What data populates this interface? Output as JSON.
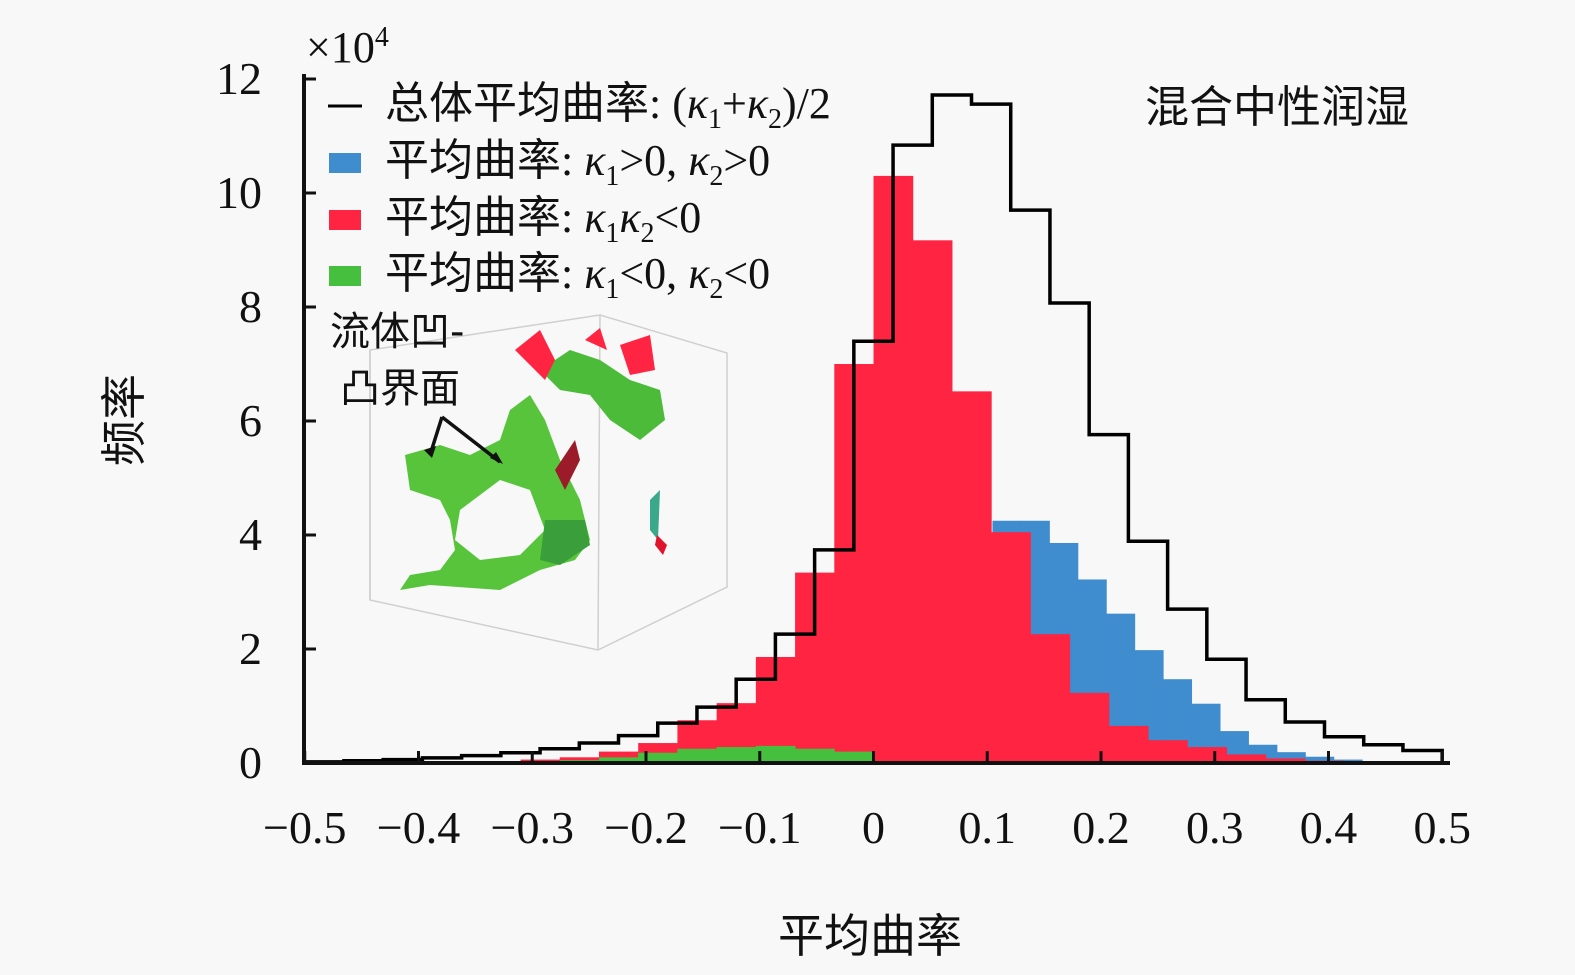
{
  "chart_data": {
    "type": "bar",
    "title": "混合中性润湿",
    "xlabel": "平均曲率",
    "ylabel": "频率",
    "y_multiplier": "×10",
    "y_multiplier_exp": "4",
    "xlim": [
      -0.5,
      0.5
    ],
    "ylim": [
      0,
      12
    ],
    "xticks": [
      -0.5,
      -0.4,
      -0.3,
      -0.2,
      -0.1,
      0,
      0.1,
      0.2,
      0.3,
      0.4,
      0.5
    ],
    "xtick_labels": [
      "−0.5",
      "−0.4",
      "−0.3",
      "−0.2",
      "−0.1",
      "0",
      "0.1",
      "0.2",
      "0.3",
      "0.4",
      "0.5"
    ],
    "yticks": [
      0,
      2,
      4,
      6,
      8,
      10,
      12
    ],
    "ytick_labels": [
      "0",
      "2",
      "4",
      "6",
      "8",
      "10",
      "12"
    ],
    "grid": false,
    "legend_position": "top-left",
    "series": [
      {
        "name": "平均曲率: κ1>0, κ2>0",
        "kind": "filled",
        "color": "#3f8ccf",
        "bin_start": 0.1046,
        "bin_width": 0.025,
        "values": [
          4.25,
          4.25,
          3.86,
          3.22,
          2.62,
          1.98,
          1.47,
          1.04,
          0.56,
          0.32,
          0.19,
          0.11,
          0.06,
          0.03
        ]
      },
      {
        "name": "平均曲率: κ1κ2<0",
        "kind": "filled",
        "color": "#ff2442",
        "bin_start": -0.3103,
        "bin_width": 0.03448,
        "values": [
          0.06,
          0.1,
          0.2,
          0.35,
          0.75,
          1.05,
          1.86,
          3.34,
          7.0,
          10.3,
          9.17,
          6.52,
          4.05,
          2.26,
          1.23,
          0.65,
          0.4,
          0.28,
          0.15,
          0.08,
          0.04
        ]
      },
      {
        "name": "平均曲率: κ1<0, κ2<0",
        "kind": "filled",
        "color": "#45bf3d",
        "bin_start": -0.2759,
        "bin_width": 0.03448,
        "values": [
          0.05,
          0.1,
          0.18,
          0.25,
          0.28,
          0.3,
          0.25,
          0.2
        ]
      },
      {
        "name": "总体平均曲率: (κ1+κ2)/2",
        "kind": "outline",
        "color": "#000000",
        "bin_start": -0.5,
        "bin_width": 0.03448,
        "values": [
          0.02,
          0.04,
          0.06,
          0.09,
          0.13,
          0.18,
          0.25,
          0.35,
          0.48,
          0.7,
          0.98,
          1.47,
          2.26,
          3.74,
          7.4,
          10.84,
          11.72,
          11.56,
          9.7,
          8.07,
          5.76,
          3.89,
          2.7,
          1.82,
          1.11,
          0.72,
          0.46,
          0.32,
          0.22
        ]
      }
    ],
    "legend": [
      {
        "label": "总体平均曲率: (κ1+κ2)/2",
        "marker": "line",
        "color": "#000000"
      },
      {
        "label": "平均曲率: κ1>0, κ2>0",
        "marker": "box",
        "color": "#3f8ccf"
      },
      {
        "label": "平均曲率: κ1κ2<0",
        "marker": "box",
        "color": "#ff2442"
      },
      {
        "label": "平均曲率: κ1<0, κ2<0",
        "marker": "box",
        "color": "#45bf3d"
      }
    ],
    "inset_annotation": [
      "流体凹-",
      "凸界面"
    ]
  }
}
